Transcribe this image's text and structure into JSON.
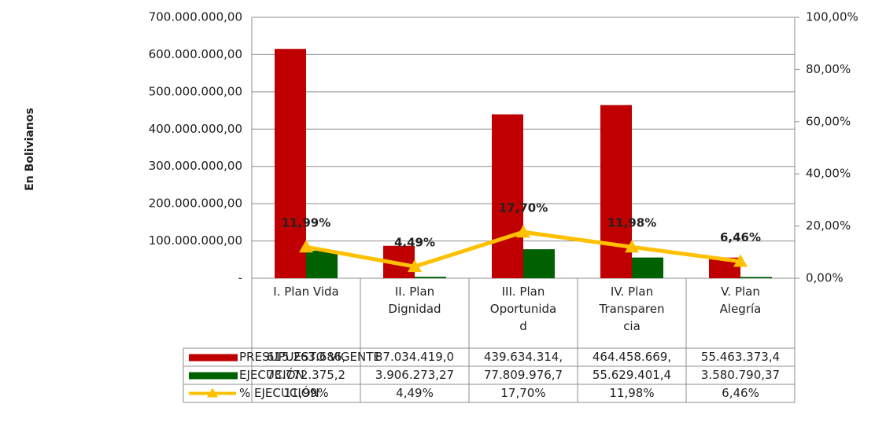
{
  "chart_data": {
    "type": "bar",
    "y_label": "En Bolivianos",
    "categories": [
      "I. Plan Vida",
      "II. Plan Dignidad",
      "III. Plan Oportunidad",
      "IV. Plan Transparencia",
      "V. Plan Alegría"
    ],
    "series": [
      {
        "name": "PRESUPUESTO VIGENTE",
        "color": "#c00000",
        "values": [
          615263686,
          87034419,
          439634314,
          464458669,
          55463373.4
        ],
        "value_labels": [
          "615.263.686,",
          "87.034.419,0",
          "439.634.314,",
          "464.458.669,",
          "55.463.373,4"
        ]
      },
      {
        "name": "EJECUCIÓN",
        "color": "#006100",
        "values": [
          73772375.2,
          3906273.27,
          77809976.7,
          55629401.4,
          3580790.37
        ],
        "value_labels": [
          "73.772.375,2",
          "3.906.273,27",
          "77.809.976,7",
          "55.629.401,4",
          "3.580.790,37"
        ]
      },
      {
        "name": "% EJECUCIÓN",
        "color": "#ffc000",
        "type": "line",
        "axis": "y2",
        "values": [
          11.99,
          4.49,
          17.7,
          11.98,
          6.46
        ],
        "value_labels": [
          "11,99%",
          "4,49%",
          "17,70%",
          "11,98%",
          "6,46%"
        ]
      }
    ],
    "ylim": [
      0,
      700000000
    ],
    "yticks": [
      {
        "value": 0,
        "label": "-"
      },
      {
        "value": 100000000,
        "label": "100.000.000,00"
      },
      {
        "value": 200000000,
        "label": "200.000.000,00"
      },
      {
        "value": 300000000,
        "label": "300.000.000,00"
      },
      {
        "value": 400000000,
        "label": "400.000.000,00"
      },
      {
        "value": 500000000,
        "label": "500.000.000,00"
      },
      {
        "value": 600000000,
        "label": "600.000.000,00"
      },
      {
        "value": 700000000,
        "label": "700.000.000,00"
      }
    ],
    "y2lim": [
      0,
      100
    ],
    "y2ticks": [
      {
        "value": 0,
        "label": "0,00%"
      },
      {
        "value": 20,
        "label": "20,00%"
      },
      {
        "value": 40,
        "label": "40,00%"
      },
      {
        "value": 60,
        "label": "60,00%"
      },
      {
        "value": 80,
        "label": "80,00%"
      },
      {
        "value": 100,
        "label": "100,00%"
      }
    ],
    "grid": true
  }
}
